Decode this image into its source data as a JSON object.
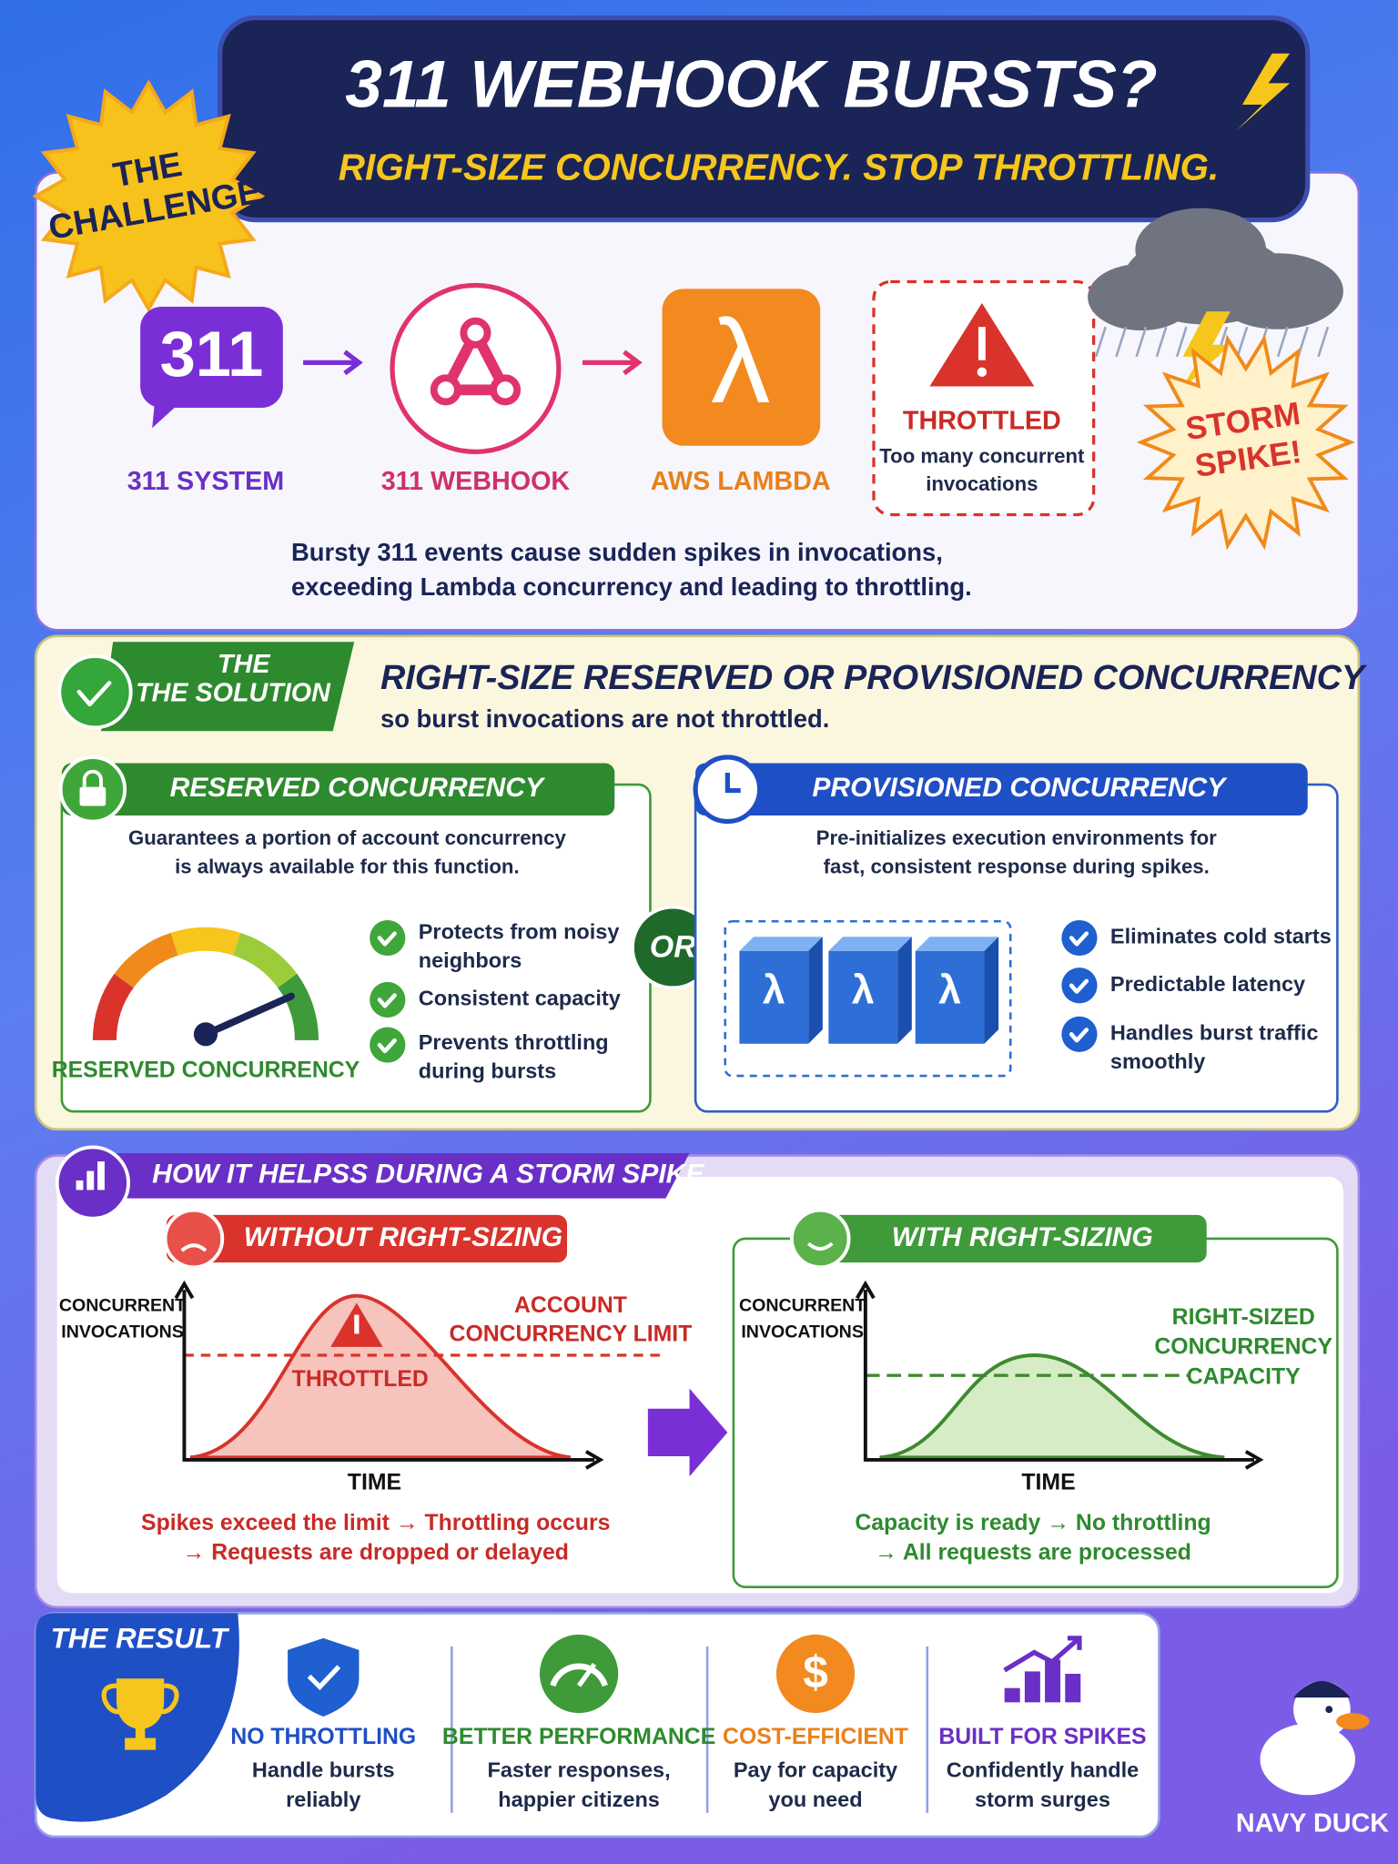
{
  "header": {
    "title": "311 WEBHOOK BURSTS?",
    "subtitle": "RIGHT-SIZE CONCURRENCY. STOP THROTTLING."
  },
  "challenge": {
    "badge": [
      "THE",
      "CHALLENGE"
    ],
    "system": {
      "icon": "311",
      "label": "311 SYSTEM"
    },
    "webhook": {
      "label": "311 WEBHOOK"
    },
    "lambda": {
      "icon": "λ",
      "label": "AWS LAMBDA"
    },
    "throttled": {
      "title": "THROTTLED",
      "text": [
        "Too many concurrent",
        "invocations"
      ]
    },
    "storm": [
      "STORM",
      "SPIKE!"
    ],
    "description": [
      "Bursty 311 events cause sudden spikes in invocations,",
      "exceeding Lambda concurrency and leading to throttling."
    ]
  },
  "solution": {
    "badge": [
      "THE",
      "THE SOLUTION"
    ],
    "heading": "RIGHT-SIZE RESERVED OR PROVISIONED CONCURRENCY",
    "subheading": "so burst invocations are not throttled.",
    "reserved": {
      "title": "RESERVED CONCURRENCY",
      "text": [
        "Guarantees a portion of account concurrency",
        "is always available for this function."
      ],
      "gauge_label": "RESERVED CONCURRENCY",
      "bullets": [
        [
          "Protects from noisy",
          "neighbors"
        ],
        [
          "Consistent capacity"
        ],
        [
          "Prevents throttling",
          "during bursts"
        ]
      ]
    },
    "separator": "OR",
    "provisioned": {
      "title": "PROVISIONED CONCURRENCY",
      "text": [
        "Pre-initializes execution environments for",
        "fast, consistent response during spikes."
      ],
      "icon": "λ",
      "bullets": [
        [
          "Eliminates cold starts"
        ],
        [
          "Predictable latency"
        ],
        [
          "Handles burst traffic",
          "smoothly"
        ]
      ]
    }
  },
  "storm_spike": {
    "title": "HOW IT HELPSS DURING A STORM SPIKE",
    "without": {
      "title": "WITHOUT RIGHT-SIZING",
      "y_label": [
        "CONCURRENT",
        "INVOCATIONS"
      ],
      "limit_label": [
        "ACCOUNT",
        "CONCURRENCY LIMIT"
      ],
      "throttled": "THROTTLED",
      "x_label": "TIME",
      "caption": [
        "Spikes exceed the limit → Throttling occurs",
        "→ Requests are dropped or delayed"
      ]
    },
    "with": {
      "title": "WITH RIGHT-SIZING",
      "y_label": [
        "CONCURRENT",
        "INVOCATIONS"
      ],
      "capacity_label": [
        "RIGHT-SIZED",
        "CONCURRENCY",
        "CAPACITY"
      ],
      "x_label": "TIME",
      "caption": [
        "Capacity is ready → No throttling",
        "→ All requests are processed"
      ]
    }
  },
  "result": {
    "title": "THE RESULT",
    "items": [
      {
        "title": "NO THROTTLING",
        "text": [
          "Handle bursts",
          "reliably"
        ]
      },
      {
        "title": "BETTER PERFORMANCE",
        "text": [
          "Faster responses,",
          "happier citizens"
        ]
      },
      {
        "title": "COST-EFFICIENT",
        "icon": "$",
        "text": [
          "Pay for capacity",
          "you need"
        ]
      },
      {
        "title": "BUILT FOR SPIKES",
        "text": [
          "Confidently handle",
          "storm surges"
        ]
      }
    ]
  },
  "brand": "NAVY DUCK"
}
